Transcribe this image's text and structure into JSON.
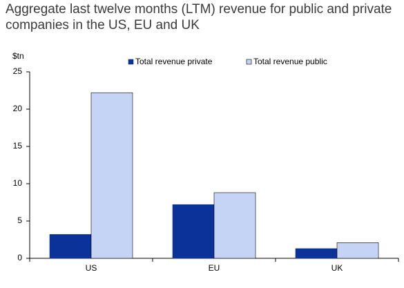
{
  "chart_data": {
    "type": "bar",
    "title": "Aggregate last twelve months (LTM) revenue for public and private companies in the US, EU and UK",
    "y_label": "$tn",
    "categories": [
      "US",
      "EU",
      "UK"
    ],
    "series": [
      {
        "name": "Total revenue private",
        "color": "#0a3299",
        "values": [
          3.2,
          7.2,
          1.3
        ]
      },
      {
        "name": "Total revenue public",
        "color": "#c5d3f5",
        "values": [
          22.2,
          8.8,
          2.1
        ]
      }
    ],
    "ylim": [
      0,
      25
    ],
    "yticks": [
      0,
      5,
      10,
      15,
      20,
      25
    ],
    "grid": false,
    "legend": "top"
  }
}
